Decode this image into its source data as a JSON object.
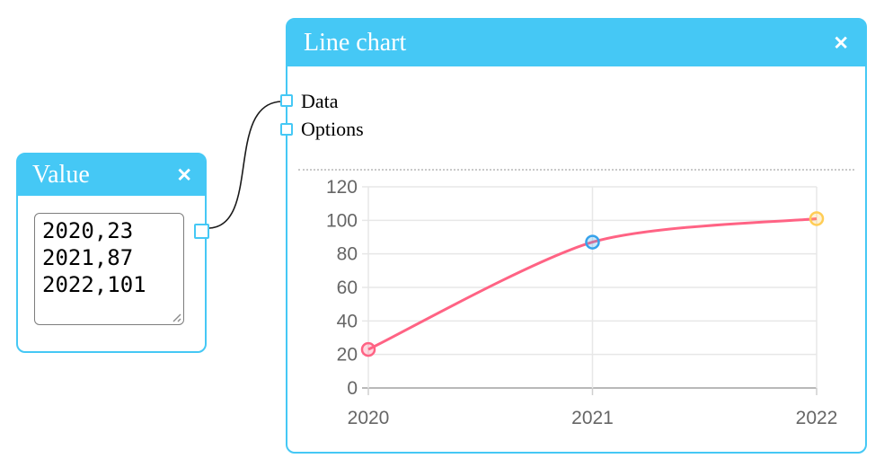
{
  "colors": {
    "accent": "#45c8f5",
    "wire": "#1a1a1a",
    "grid": "#e7e7e7",
    "axis": "#b9b9b9",
    "tick_label": "#666666"
  },
  "value_node": {
    "title": "Value",
    "close": "✕",
    "textarea_value": "2020,23\n2021,87\n2022,101"
  },
  "chart_node": {
    "title": "Line chart",
    "close": "✕",
    "inputs": [
      {
        "label": "Data"
      },
      {
        "label": "Options"
      }
    ]
  },
  "chart_data": {
    "type": "line",
    "categories": [
      "2020",
      "2021",
      "2022"
    ],
    "values": [
      23,
      87,
      101
    ],
    "y_ticks": [
      0,
      20,
      40,
      60,
      80,
      100,
      120
    ],
    "ylim": [
      0,
      120
    ],
    "xlabel": "",
    "ylabel": "",
    "title": "",
    "grid": true,
    "legend": "none",
    "line_color": "#ff6384",
    "point_colors": [
      "#ff6384",
      "#36a2eb",
      "#ffcd56"
    ]
  }
}
